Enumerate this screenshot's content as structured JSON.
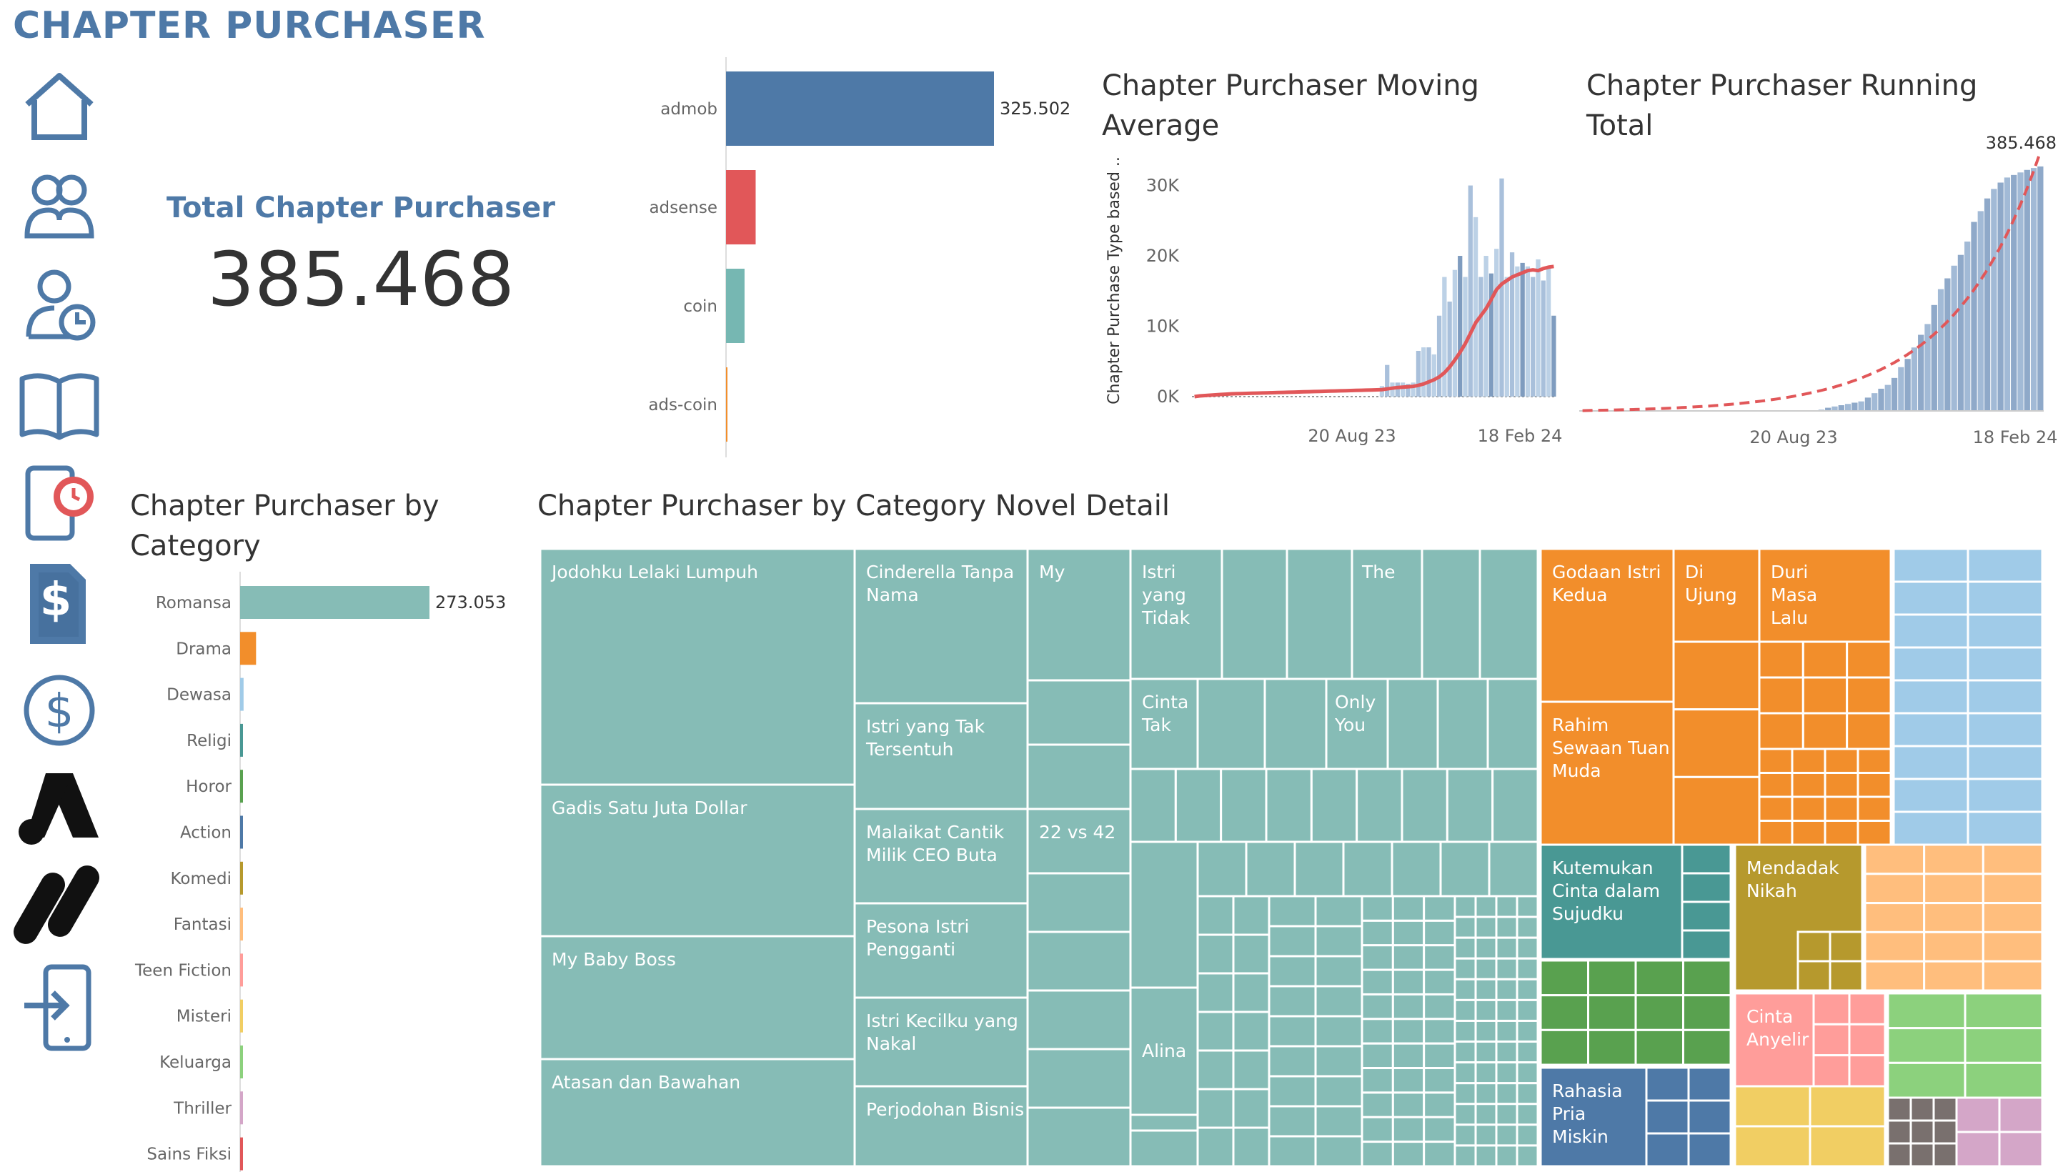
{
  "dashboard": {
    "title": "CHAPTER PURCHASER"
  },
  "nav": [
    {
      "name": "home-icon"
    },
    {
      "name": "users-icon"
    },
    {
      "name": "user-clock-icon"
    },
    {
      "name": "book-icon"
    },
    {
      "name": "tablet-timer-icon"
    },
    {
      "name": "invoice-dollar-icon"
    },
    {
      "name": "dollar-circle-icon"
    },
    {
      "name": "adsense-logo-icon"
    },
    {
      "name": "admob-logo-icon"
    },
    {
      "name": "tablet-login-icon"
    }
  ],
  "kpi": {
    "label": "Total Chapter Purchaser",
    "value": "385.468"
  },
  "colors": {
    "accent": "#4e79a7",
    "teal": "#86bcb6",
    "orange": "#f28e2b",
    "red": "#e15759",
    "lightblue": "#a0cbe8",
    "darkteal": "#499894",
    "green": "#59a14f",
    "olive": "#b6992d",
    "peach": "#ffbe7d",
    "pink": "#ff9d9a",
    "yellow": "#f1ce63",
    "lightgreen": "#8cd17d",
    "brown": "#79706e"
  },
  "chart_data": [
    {
      "type": "bar",
      "orientation": "horizontal",
      "title": "",
      "categories": [
        "admob",
        "adsense",
        "coin",
        "ads-coin"
      ],
      "values": [
        325502,
        36000,
        22500,
        1466
      ],
      "value_labels": [
        "325.502",
        "",
        "",
        ""
      ],
      "bar_colors": [
        "#4e79a7",
        "#e15759",
        "#76b7b2",
        "#f28e2b"
      ]
    },
    {
      "type": "bar",
      "title": "Chapter Purchaser Moving Average",
      "xlabel": "",
      "ylabel": "Chapter Purchase Type based ..",
      "yticks": [
        "0K",
        "10K",
        "20K",
        "30K"
      ],
      "ylim": [
        0,
        33000
      ],
      "xticks": [
        "20 Aug 23",
        "18 Feb 24"
      ],
      "bar_values": [
        0,
        0,
        0,
        0,
        0,
        0,
        0,
        0,
        0,
        0,
        0,
        0,
        0,
        0,
        0,
        0,
        0,
        0,
        0,
        0,
        0,
        0,
        0,
        0,
        0,
        0,
        0,
        0,
        0,
        0,
        0,
        0,
        0,
        0,
        0,
        0,
        1500,
        4500,
        2000,
        2000,
        2000,
        1800,
        2000,
        6500,
        7000,
        7000,
        6000,
        11500,
        17000,
        13500,
        18000,
        20000,
        17000,
        30000,
        25500,
        17000,
        20000,
        17500,
        21000,
        31000,
        17000,
        20500,
        18500,
        19000,
        18500,
        17000,
        19500,
        16500,
        18500,
        11500
      ],
      "moving_average": [
        0,
        100,
        150,
        200,
        250,
        300,
        350,
        400,
        420,
        440,
        460,
        480,
        500,
        520,
        540,
        560,
        580,
        600,
        620,
        640,
        660,
        680,
        700,
        720,
        740,
        760,
        780,
        800,
        820,
        840,
        860,
        880,
        900,
        920,
        940,
        960,
        1000,
        1100,
        1200,
        1300,
        1350,
        1400,
        1450,
        1600,
        1800,
        2100,
        2400,
        2800,
        3400,
        4200,
        5200,
        6300,
        7500,
        9000,
        10500,
        11500,
        12500,
        13800,
        15200,
        16000,
        16500,
        17000,
        17300,
        17600,
        17900,
        18000,
        17900,
        18200,
        18400,
        18500
      ],
      "series": [
        {
          "name": "Chapter Purchase"
        },
        {
          "name": "Moving Average"
        }
      ]
    },
    {
      "type": "bar",
      "title": "Chapter Purchaser Running Total",
      "xticks": [
        "20 Aug 23",
        "18 Feb 24"
      ],
      "end_label": "385.468",
      "bar_values": [
        0,
        0,
        0,
        0,
        0,
        0,
        0,
        0,
        0,
        0,
        0,
        0,
        0,
        0,
        0,
        0,
        0,
        0,
        0,
        0,
        0,
        0,
        0,
        0,
        0,
        0,
        0,
        0,
        0,
        0,
        0,
        0,
        0,
        0,
        0,
        0,
        2000,
        5000,
        7000,
        9000,
        11000,
        13000,
        15000,
        21000,
        28000,
        35000,
        41000,
        52000,
        69000,
        82000,
        100000,
        120000,
        137000,
        167000,
        192000,
        209000,
        229000,
        246000,
        267000,
        298000,
        315000,
        335000,
        350000,
        360000,
        368000,
        372000,
        376000,
        380000,
        383000,
        385468
      ],
      "ylim": [
        0,
        400000
      ]
    },
    {
      "type": "bar",
      "orientation": "horizontal",
      "title": "Chapter Purchaser by Category",
      "categories": [
        "Romansa",
        "Drama",
        "Dewasa",
        "Religi",
        "Horor",
        "Action",
        "Komedi",
        "Fantasi",
        "Teen Fiction",
        "Misteri",
        "Keluarga",
        "Thriller",
        "Sains Fiksi"
      ],
      "values": [
        273053,
        23000,
        5000,
        3500,
        3500,
        3000,
        2800,
        2500,
        2000,
        1800,
        1500,
        1000,
        800
      ],
      "value_labels": [
        "273.053",
        "",
        "",
        "",
        "",
        "",
        "",
        "",
        "",
        "",
        "",
        "",
        ""
      ],
      "bar_colors": [
        "#86bcb6",
        "#f28e2b",
        "#a0cbe8",
        "#499894",
        "#59a14f",
        "#4e79a7",
        "#b6992d",
        "#ffbe7d",
        "#ff9d9a",
        "#f1ce63",
        "#8cd17d",
        "#d4a6c8",
        "#e15759"
      ]
    },
    {
      "type": "treemap",
      "title": "Chapter Purchaser by Category Novel Detail",
      "labels": [
        "Jodohku Lelaki Lumpuh",
        "Gadis Satu Juta Dollar",
        "My Baby Boss",
        "Atasan dan Bawahan",
        "Cinderella Tanpa Nama",
        "Istri yang Tak Tersentuh",
        "Malaikat Cantik Milik CEO Buta",
        "Pesona Istri Pengganti",
        "Istri Kecilku yang Nakal",
        "Perjodohan Bisnis",
        "My",
        "22 vs 42",
        "Istri yang Tidak",
        "The",
        "Cinta Tak",
        "Only You",
        "Alina",
        "Godaan Istri Kedua",
        "Di Ujung",
        "Duri Masa Lalu",
        "Rahim Sewaan Tuan Muda",
        "Kutemukan Cinta dalam Sujudku",
        "Mendadak Nikah",
        "Cinta Anyelir",
        "Rahasia Pria Miskin"
      ]
    }
  ]
}
